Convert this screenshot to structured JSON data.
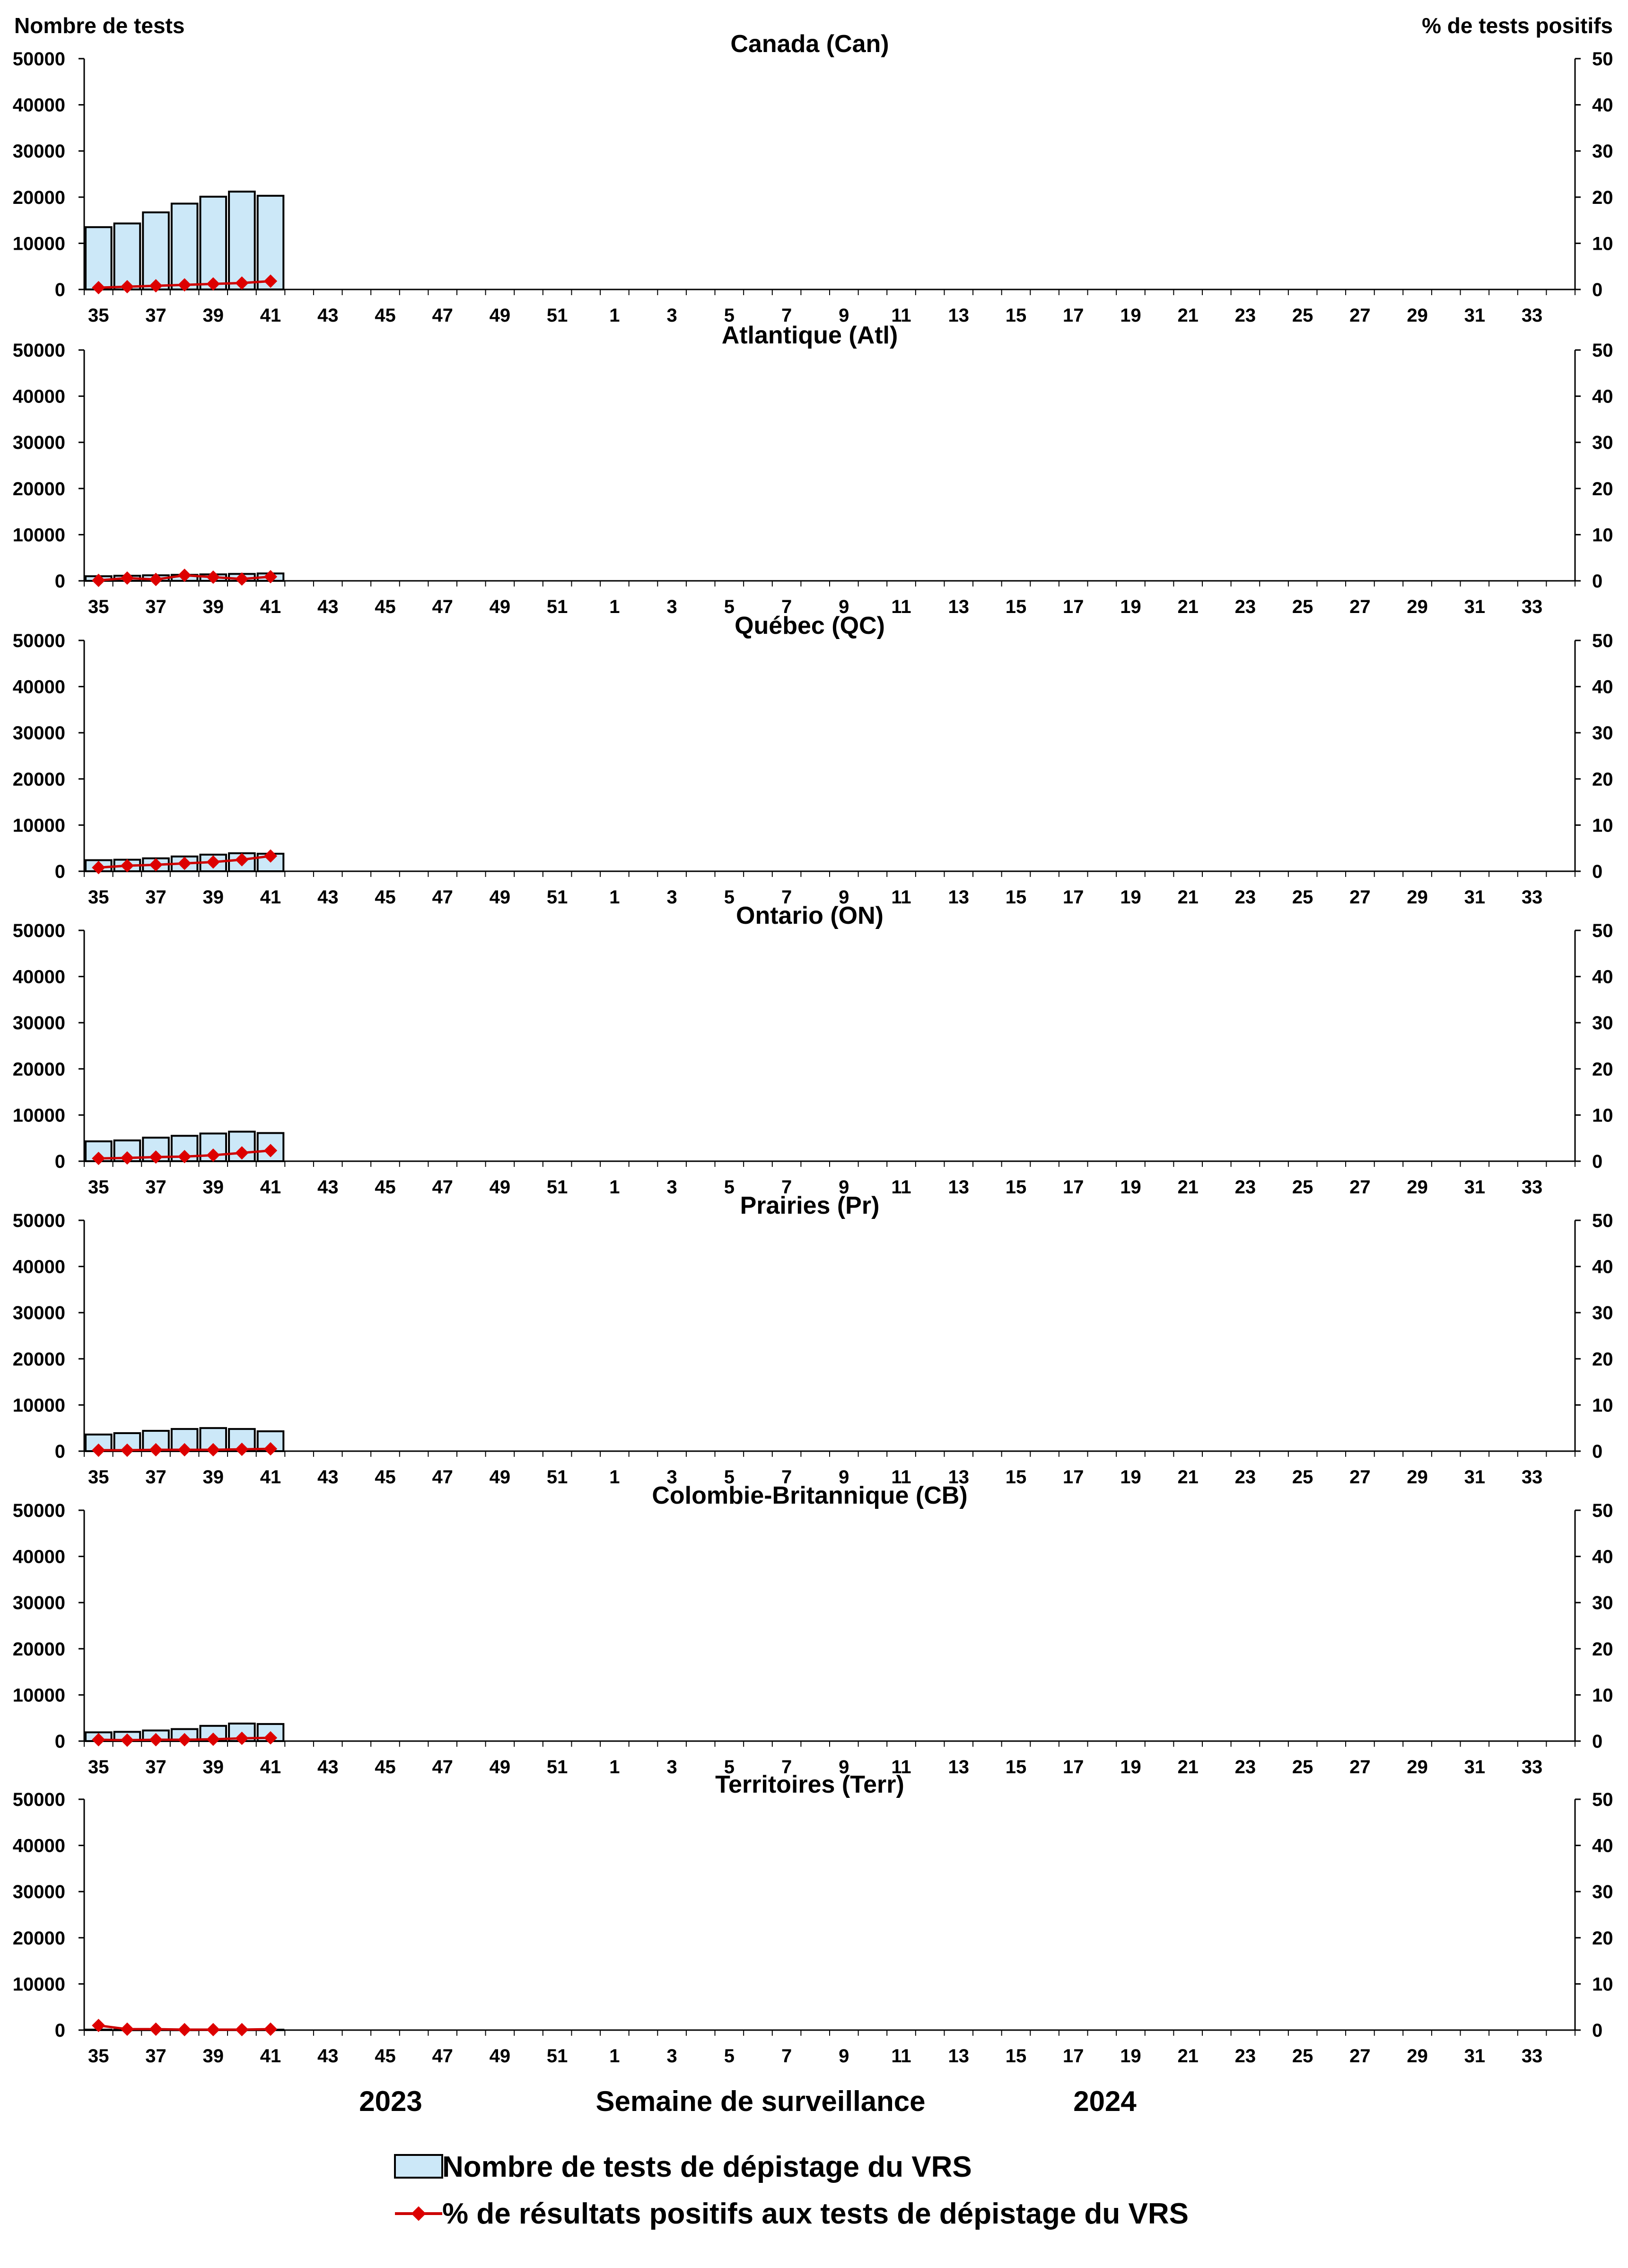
{
  "y_left_label": "Nombre de tests",
  "y_right_label": "% de tests positifs",
  "x_label": "Semaine de surveillance",
  "year_left": "2023",
  "year_right": "2024",
  "legend": {
    "bars": "Nombre de tests de dépistage du VRS",
    "line": "% de résultats positifs aux tests de dépistage du VRS"
  },
  "colors": {
    "bar_fill": "#cce8f8",
    "bar_stroke": "#000000",
    "line": "#cc0000",
    "marker": "#dd0000"
  },
  "chart_data": {
    "type": "bar",
    "weeks": [
      35,
      36,
      37,
      38,
      39,
      40,
      41,
      42,
      43,
      44,
      45,
      46,
      47,
      48,
      49,
      50,
      51,
      52,
      1,
      2,
      3,
      4,
      5,
      6,
      7,
      8,
      9,
      10,
      11,
      12,
      13,
      14,
      15,
      16,
      17,
      18,
      19,
      20,
      21,
      22,
      23,
      24,
      25,
      26,
      27,
      28,
      29,
      30,
      31,
      32,
      33,
      34
    ],
    "x_tick_labels": [
      "35",
      "37",
      "39",
      "41",
      "43",
      "45",
      "47",
      "49",
      "51",
      "1",
      "3",
      "5",
      "7",
      "9",
      "11",
      "13",
      "15",
      "17",
      "19",
      "21",
      "23",
      "25",
      "27",
      "29",
      "31",
      "33"
    ],
    "y_left_ticks": [
      "0",
      "10000",
      "20000",
      "30000",
      "40000",
      "50000"
    ],
    "y_right_ticks": [
      "0",
      "10",
      "20",
      "30",
      "40",
      "50"
    ],
    "y_left_lim": [
      0,
      50000
    ],
    "y_right_lim": [
      0,
      50
    ],
    "panels": [
      {
        "title": "Canada (Can)",
        "tests": [
          13500,
          14300,
          16700,
          18600,
          20100,
          21200,
          20300
        ],
        "pct_positive": [
          0.4,
          0.6,
          0.8,
          1.0,
          1.2,
          1.4,
          1.8
        ]
      },
      {
        "title": "Atlantique (Atl)",
        "tests": [
          1000,
          1100,
          1200,
          1300,
          1400,
          1500,
          1600
        ],
        "pct_positive": [
          0.1,
          0.6,
          0.3,
          1.2,
          0.8,
          0.4,
          0.9
        ]
      },
      {
        "title": "Québec (QC)",
        "tests": [
          2400,
          2500,
          2800,
          3200,
          3600,
          3900,
          3800
        ],
        "pct_positive": [
          0.8,
          1.2,
          1.4,
          1.7,
          2.0,
          2.5,
          3.3
        ]
      },
      {
        "title": "Ontario (ON)",
        "tests": [
          4300,
          4500,
          5100,
          5500,
          6000,
          6400,
          6100
        ],
        "pct_positive": [
          0.6,
          0.7,
          0.9,
          1.0,
          1.3,
          1.8,
          2.3
        ]
      },
      {
        "title": "Prairies (Pr)",
        "tests": [
          3600,
          3900,
          4400,
          4800,
          5000,
          4800,
          4300
        ],
        "pct_positive": [
          0.2,
          0.2,
          0.3,
          0.3,
          0.3,
          0.4,
          0.5
        ]
      },
      {
        "title": "Colombie-Britannique (CB)",
        "tests": [
          1900,
          2000,
          2300,
          2600,
          3300,
          3800,
          3700
        ],
        "pct_positive": [
          0.3,
          0.2,
          0.3,
          0.3,
          0.4,
          0.6,
          0.7
        ]
      },
      {
        "title": "Territoires (Terr)",
        "tests": [
          100,
          80,
          90,
          80,
          100,
          90,
          90
        ],
        "pct_positive": [
          1.0,
          0.2,
          0.2,
          0.1,
          0.1,
          0.1,
          0.2
        ]
      }
    ]
  }
}
